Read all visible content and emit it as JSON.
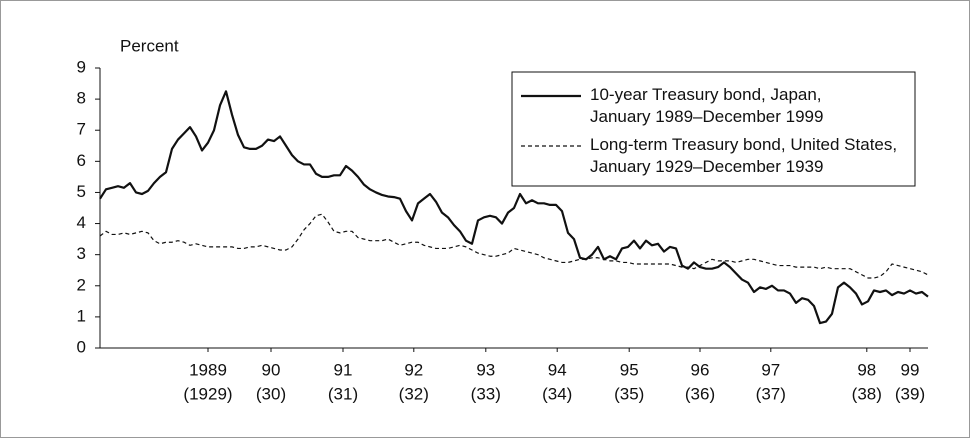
{
  "chart_data": {
    "type": "line",
    "y_label": "Percent",
    "ylim": [
      0,
      9
    ],
    "yticks": [
      0,
      1,
      2,
      3,
      4,
      5,
      6,
      7,
      8,
      9
    ],
    "xlim": [
      0,
      138
    ],
    "xticks": [
      {
        "value": 18,
        "label": "1989"
      },
      {
        "value": 28.5,
        "label": "90"
      },
      {
        "value": 40.5,
        "label": "91"
      },
      {
        "value": 52.3,
        "label": "92"
      },
      {
        "value": 64.3,
        "label": "93"
      },
      {
        "value": 76.2,
        "label": "94"
      },
      {
        "value": 88.2,
        "label": "95"
      },
      {
        "value": 100,
        "label": "96"
      },
      {
        "value": 111.8,
        "label": "97"
      },
      {
        "value": 127.8,
        "label": "98"
      },
      {
        "value": 135,
        "label": "99"
      }
    ],
    "xtick_sublabels": [
      "(1929)",
      "(30)",
      "(31)",
      "(32)",
      "(33)",
      "(34)",
      "(35)",
      "(36)",
      "(37)",
      "(38)",
      "(39)"
    ],
    "legend_position": "upper right",
    "series": [
      {
        "name": "10-year Treasury bond, Japan,\nJanuary 1989–December 1999",
        "color": "#111111",
        "dash": "solid",
        "values": [
          4.8,
          5.1,
          5.15,
          5.2,
          5.15,
          5.3,
          5.0,
          4.95,
          5.05,
          5.3,
          5.5,
          5.65,
          6.4,
          6.7,
          6.9,
          7.1,
          6.8,
          6.35,
          6.6,
          7.0,
          7.8,
          8.25,
          7.5,
          6.85,
          6.45,
          6.4,
          6.4,
          6.5,
          6.7,
          6.65,
          6.8,
          6.5,
          6.2,
          6.0,
          5.9,
          5.9,
          5.6,
          5.5,
          5.5,
          5.55,
          5.55,
          5.85,
          5.7,
          5.5,
          5.25,
          5.1,
          5.0,
          4.92,
          4.87,
          4.85,
          4.8,
          4.4,
          4.1,
          4.65,
          4.8,
          4.95,
          4.7,
          4.35,
          4.2,
          3.95,
          3.75,
          3.45,
          3.35,
          4.1,
          4.2,
          4.25,
          4.2,
          4.0,
          4.35,
          4.5,
          4.95,
          4.65,
          4.75,
          4.65,
          4.65,
          4.6,
          4.6,
          4.4,
          3.7,
          3.5,
          2.9,
          2.85,
          3.0,
          3.25,
          2.85,
          2.95,
          2.85,
          3.2,
          3.25,
          3.45,
          3.2,
          3.45,
          3.3,
          3.35,
          3.1,
          3.25,
          3.2,
          2.65,
          2.55,
          2.75,
          2.6,
          2.55,
          2.55,
          2.6,
          2.75,
          2.6,
          2.4,
          2.2,
          2.1,
          1.8,
          1.95,
          1.9,
          2.0,
          1.85,
          1.85,
          1.75,
          1.45,
          1.6,
          1.55,
          1.35,
          0.8,
          0.85,
          1.1,
          1.95,
          2.1,
          1.95,
          1.75,
          1.4,
          1.5,
          1.85,
          1.8,
          1.85,
          1.7,
          1.8,
          1.75,
          1.85,
          1.75,
          1.8,
          1.65
        ]
      },
      {
        "name": "Long-term Treasury bond, United States,\nJanuary 1929–December 1939",
        "color": "#111111",
        "dash": "dashed",
        "values": [
          3.6,
          3.75,
          3.65,
          3.65,
          3.7,
          3.65,
          3.7,
          3.75,
          3.7,
          3.45,
          3.35,
          3.4,
          3.4,
          3.45,
          3.4,
          3.3,
          3.35,
          3.3,
          3.25,
          3.25,
          3.25,
          3.25,
          3.25,
          3.2,
          3.2,
          3.25,
          3.25,
          3.3,
          3.25,
          3.2,
          3.15,
          3.15,
          3.25,
          3.5,
          3.8,
          4.0,
          4.25,
          4.3,
          4.05,
          3.75,
          3.7,
          3.75,
          3.75,
          3.55,
          3.5,
          3.45,
          3.45,
          3.45,
          3.5,
          3.4,
          3.3,
          3.35,
          3.4,
          3.4,
          3.3,
          3.25,
          3.2,
          3.2,
          3.2,
          3.25,
          3.3,
          3.25,
          3.15,
          3.05,
          3.0,
          2.95,
          2.95,
          3.0,
          3.05,
          3.2,
          3.15,
          3.1,
          3.05,
          3.0,
          2.9,
          2.85,
          2.8,
          2.75,
          2.75,
          2.8,
          2.85,
          2.85,
          2.9,
          2.9,
          2.85,
          2.8,
          2.8,
          2.75,
          2.75,
          2.7,
          2.7,
          2.7,
          2.7,
          2.7,
          2.7,
          2.7,
          2.65,
          2.6,
          2.6,
          2.55,
          2.65,
          2.75,
          2.85,
          2.8,
          2.8,
          2.8,
          2.75,
          2.8,
          2.85,
          2.85,
          2.8,
          2.75,
          2.7,
          2.65,
          2.65,
          2.65,
          2.6,
          2.6,
          2.6,
          2.6,
          2.55,
          2.6,
          2.55,
          2.55,
          2.55,
          2.55,
          2.45,
          2.35,
          2.25,
          2.25,
          2.3,
          2.45,
          2.7,
          2.65,
          2.6,
          2.55,
          2.5,
          2.45,
          2.35
        ]
      }
    ]
  }
}
